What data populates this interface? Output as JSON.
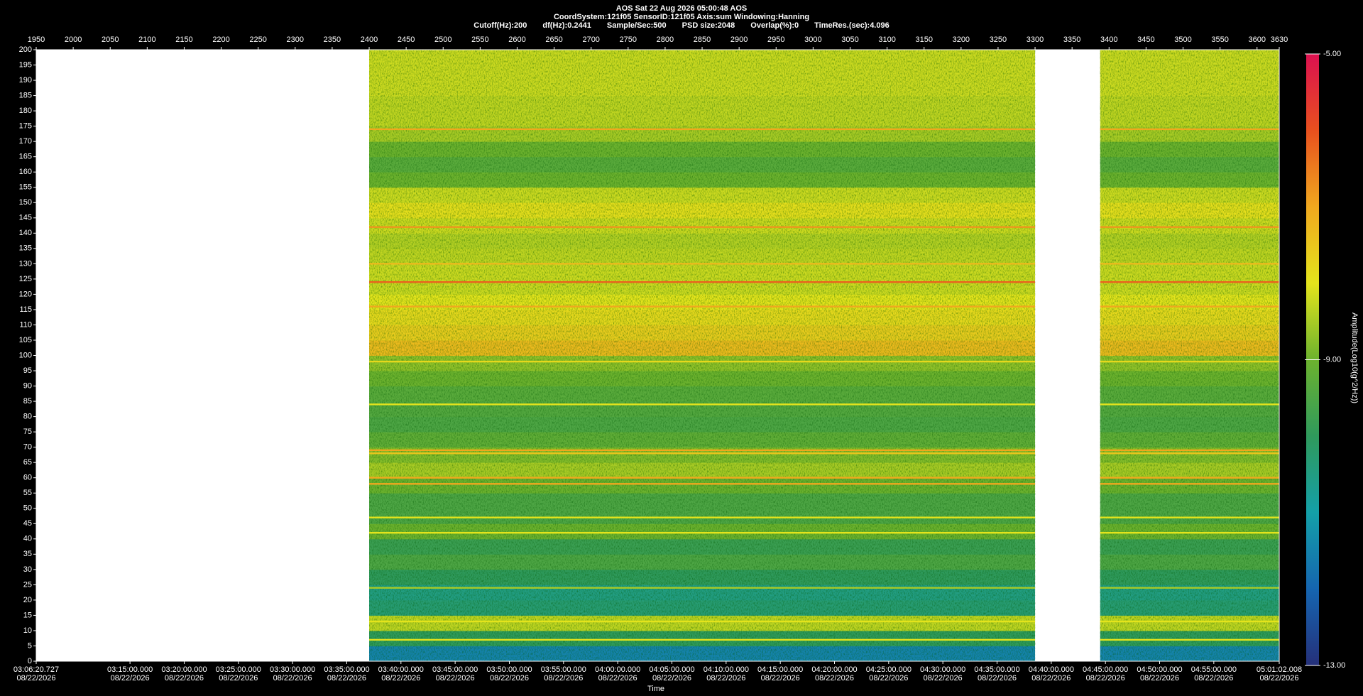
{
  "chart_data": {
    "type": "spectrogram",
    "title": "AOS  Sat 22 Aug 2026 05:00:48  AOS",
    "subtitle": "CoordSystem:121f05   SensorID:121f05   Axis:sum   Windowing:Hanning",
    "info": [
      "Cutoff(Hz):200",
      "df(Hz):0.2441",
      "Sample/Sec:500",
      "PSD size:2048",
      "Overlap(%):0",
      "TimeRes.(sec):4.096"
    ],
    "x_label": "Time",
    "colorbar_label": "Amplitude(Log10(g^2/Hz))",
    "xlim": [
      1950,
      3630
    ],
    "xticks": [
      1950,
      2000,
      2050,
      2100,
      2150,
      2200,
      2250,
      2300,
      2350,
      2400,
      2450,
      2500,
      2550,
      2600,
      2650,
      2700,
      2750,
      2800,
      2850,
      2900,
      2950,
      3000,
      3050,
      3100,
      3150,
      3200,
      3250,
      3300,
      3350,
      3400,
      3450,
      3500,
      3550,
      3600,
      3630
    ],
    "time_ticks": [
      {
        "value": 1950,
        "label": "03:06:20.727"
      },
      {
        "value": 2076.77,
        "label": "03:15:00.000"
      },
      {
        "value": 2150.01,
        "label": "03:20:00.000"
      },
      {
        "value": 2223.25,
        "label": "03:25:00.000"
      },
      {
        "value": 2296.49,
        "label": "03:30:00.000"
      },
      {
        "value": 2369.73,
        "label": "03:35:00.000"
      },
      {
        "value": 2442.97,
        "label": "03:40:00.000"
      },
      {
        "value": 2516.21,
        "label": "03:45:00.000"
      },
      {
        "value": 2589.46,
        "label": "03:50:00.000"
      },
      {
        "value": 2662.7,
        "label": "03:55:00.000"
      },
      {
        "value": 2735.94,
        "label": "04:00:00.000"
      },
      {
        "value": 2809.18,
        "label": "04:05:00.000"
      },
      {
        "value": 2882.42,
        "label": "04:10:00.000"
      },
      {
        "value": 2955.66,
        "label": "04:15:00.000"
      },
      {
        "value": 3028.9,
        "label": "04:20:00.000"
      },
      {
        "value": 3102.14,
        "label": "04:25:00.000"
      },
      {
        "value": 3175.38,
        "label": "04:30:00.000"
      },
      {
        "value": 3248.62,
        "label": "04:35:00.000"
      },
      {
        "value": 3321.86,
        "label": "04:40:00.000"
      },
      {
        "value": 3395.1,
        "label": "04:45:00.000"
      },
      {
        "value": 3468.34,
        "label": "04:50:00.000"
      },
      {
        "value": 3541.58,
        "label": "04:55:00.000"
      },
      {
        "value": 3630,
        "label": "05:01:02.008"
      }
    ],
    "date": "08/22/2026",
    "ylim": [
      0,
      200
    ],
    "yticks": [
      0,
      5,
      10,
      15,
      20,
      25,
      30,
      35,
      40,
      45,
      50,
      55,
      60,
      65,
      70,
      75,
      80,
      85,
      90,
      95,
      100,
      105,
      110,
      115,
      120,
      125,
      130,
      135,
      140,
      145,
      150,
      155,
      160,
      165,
      170,
      175,
      180,
      185,
      190,
      195,
      200
    ],
    "segments": [
      [
        2400,
        3300
      ],
      [
        3388,
        3630
      ]
    ],
    "bands": {
      "bins": [
        0,
        5,
        10,
        15,
        20,
        25,
        30,
        35,
        40,
        45,
        50,
        55,
        60,
        65,
        70,
        75,
        80,
        85,
        90,
        95,
        100,
        105,
        110,
        115,
        120,
        125,
        130,
        135,
        140,
        145,
        150,
        155,
        160,
        165,
        170,
        175,
        180,
        185,
        190,
        195,
        200
      ],
      "values": [
        -11.5,
        -10,
        -8.3,
        -10.3,
        -10.5,
        -10,
        -9.5,
        -9.8,
        -9,
        -9.5,
        -9.5,
        -9,
        -8.5,
        -8.8,
        -9.2,
        -9.5,
        -9.4,
        -9.3,
        -9,
        -8.7,
        -7.3,
        -7.6,
        -7.8,
        -8,
        -8.2,
        -8.2,
        -8.3,
        -8.4,
        -8.2,
        -7.9,
        -8.2,
        -9,
        -9.3,
        -9,
        -8.5,
        -8.3,
        -8.3,
        -8.2,
        -8.2,
        -8.2
      ]
    },
    "lines": {
      "frequencies": [
        7,
        13,
        24,
        42,
        47,
        58,
        60,
        68,
        69,
        84,
        98,
        116,
        124,
        130,
        142,
        174
      ],
      "values": [
        -8,
        -8,
        -8.5,
        -8,
        -8,
        -7,
        -7,
        -7.5,
        -7,
        -8,
        -7.8,
        -7,
        -6.2,
        -7.3,
        -6.8,
        -7
      ]
    },
    "clim": [
      -13,
      -5
    ],
    "cticks": [
      {
        "value": -13,
        "label": "-13.00"
      },
      {
        "value": -9,
        "label": "-9.00"
      },
      {
        "value": -5,
        "label": "-5.00"
      }
    ],
    "colormap": [
      "#25307a",
      "#1565b0",
      "#14a0a8",
      "#2f9a5c",
      "#6cb22e",
      "#e4e41c",
      "#f0a81e",
      "#e8501e",
      "#dc1050"
    ],
    "missing_color": "#ffffff"
  }
}
